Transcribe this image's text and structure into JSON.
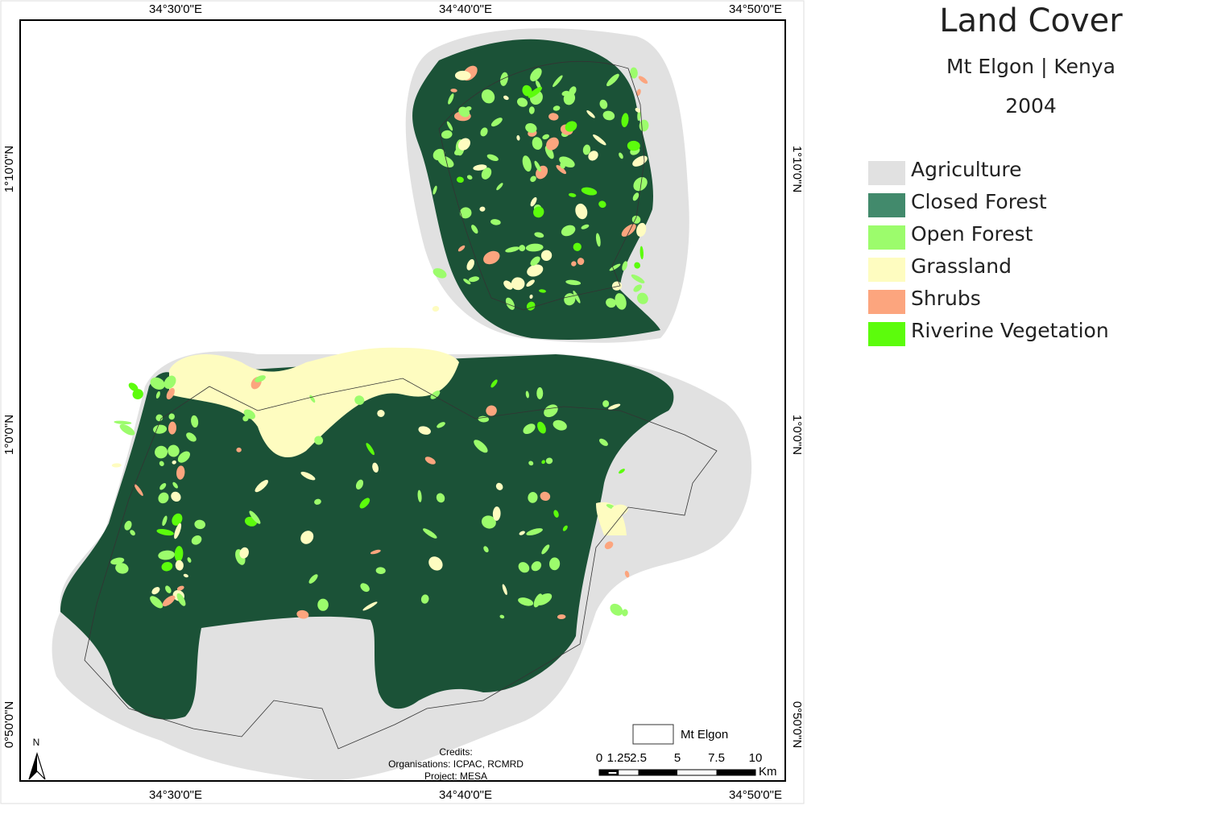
{
  "map": {
    "graticule": {
      "longitudes": [
        "34°30'0\"E",
        "34°40'0\"E",
        "34°50'0\"E"
      ],
      "latitudes": [
        "1°10'0\"N",
        "1°0'0\"N",
        "0°50'0\"N"
      ]
    },
    "north": "N",
    "credits": [
      "Credits:",
      "Organisations: ICPAC, RCMRD",
      "Project: MESA"
    ],
    "boundary_legend": "Mt Elgon",
    "scale_bar": {
      "labels": [
        "0",
        "1.25",
        "2.5",
        "5",
        "7.5",
        "10"
      ],
      "unit": "Km"
    }
  },
  "legend": {
    "title": "Land Cover",
    "subtitle": "Mt Elgon | Kenya",
    "year": "2004",
    "items": [
      {
        "label": "Agriculture",
        "color": "#e1e1e1"
      },
      {
        "label": "Closed Forest",
        "color": "#428a6c"
      },
      {
        "label": "Open Forest",
        "color": "#9cfc6c"
      },
      {
        "label": "Grassland",
        "color": "#fefcc0"
      },
      {
        "label": "Shrubs",
        "color": "#fca57e"
      },
      {
        "label": "Riverine Vegetation",
        "color": "#5cfc0c"
      }
    ]
  }
}
